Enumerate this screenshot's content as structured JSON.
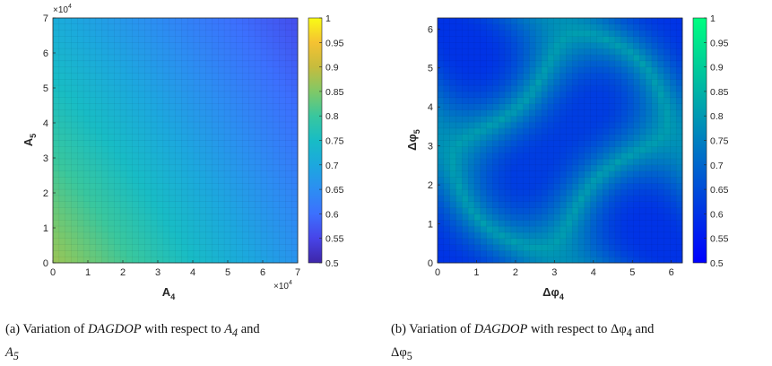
{
  "chart_data": [
    {
      "type": "heatmap",
      "xlabel": "A",
      "xlabel_sub": "4",
      "ylabel": "A",
      "ylabel_sub": "5",
      "x_exponent_label": "×10",
      "x_exponent_power": "4",
      "y_exponent_label": "×10",
      "y_exponent_power": "4",
      "xlim": [
        0,
        70000
      ],
      "ylim": [
        0,
        70000
      ],
      "x_ticks": [
        0,
        10000,
        20000,
        30000,
        40000,
        50000,
        60000,
        70000
      ],
      "x_tick_labels": [
        "0",
        "1",
        "2",
        "3",
        "4",
        "5",
        "6",
        "7"
      ],
      "y_ticks": [
        0,
        10000,
        20000,
        30000,
        40000,
        50000,
        60000,
        70000
      ],
      "y_tick_labels": [
        "0",
        "1",
        "2",
        "3",
        "4",
        "5",
        "6",
        "7"
      ],
      "colormap": "parula",
      "clim": [
        0.5,
        1
      ],
      "colorbar_ticks": [
        0.5,
        0.55,
        0.6,
        0.65,
        0.7,
        0.75,
        0.8,
        0.85,
        0.9,
        0.95,
        1
      ],
      "colorbar_tick_labels": [
        "0.5",
        "0.55",
        "0.6",
        "0.65",
        "0.7",
        "0.75",
        "0.8",
        "0.85",
        "0.9",
        "0.95",
        "1"
      ],
      "grid": true,
      "corner_values": {
        "x0_y0": 0.87,
        "xmax_y0": 0.66,
        "x0_ymax": 0.71,
        "xmax_ymax": 0.56
      }
    },
    {
      "type": "heatmap",
      "xlabel": "Δφ",
      "xlabel_sub": "4",
      "ylabel": "Δφ",
      "ylabel_sub": "5",
      "xlim": [
        0,
        6.283
      ],
      "ylim": [
        0,
        6.283
      ],
      "x_ticks": [
        0,
        1,
        2,
        3,
        4,
        5,
        6
      ],
      "x_tick_labels": [
        "0",
        "1",
        "2",
        "3",
        "4",
        "5",
        "6"
      ],
      "y_ticks": [
        0,
        1,
        2,
        3,
        4,
        5,
        6
      ],
      "y_tick_labels": [
        "0",
        "1",
        "2",
        "3",
        "4",
        "5",
        "6"
      ],
      "colormap": "winter",
      "clim": [
        0.5,
        1
      ],
      "colorbar_ticks": [
        0.5,
        0.55,
        0.6,
        0.65,
        0.7,
        0.75,
        0.8,
        0.85,
        0.9,
        0.95,
        1
      ],
      "colorbar_tick_labels": [
        "0.5",
        "0.55",
        "0.6",
        "0.65",
        "0.7",
        "0.75",
        "0.8",
        "0.85",
        "0.9",
        "0.95",
        "1"
      ],
      "grid": true,
      "value_range": [
        0.6,
        0.81
      ]
    }
  ],
  "captions": {
    "a": {
      "tag": "(a)",
      "prefix": "Variation of",
      "metric": "DAGDOP",
      "mid": "with respect to",
      "var1": "A",
      "var1_sub": "4",
      "conj": "and",
      "var2": "A",
      "var2_sub": "5"
    },
    "b": {
      "tag": "(b)",
      "prefix": "Variation of",
      "metric": "DAGDOP",
      "mid": "with respect to",
      "var1": "Δφ",
      "var1_sub": "4",
      "conj": "and",
      "var2": "Δφ",
      "var2_sub": "5"
    }
  }
}
